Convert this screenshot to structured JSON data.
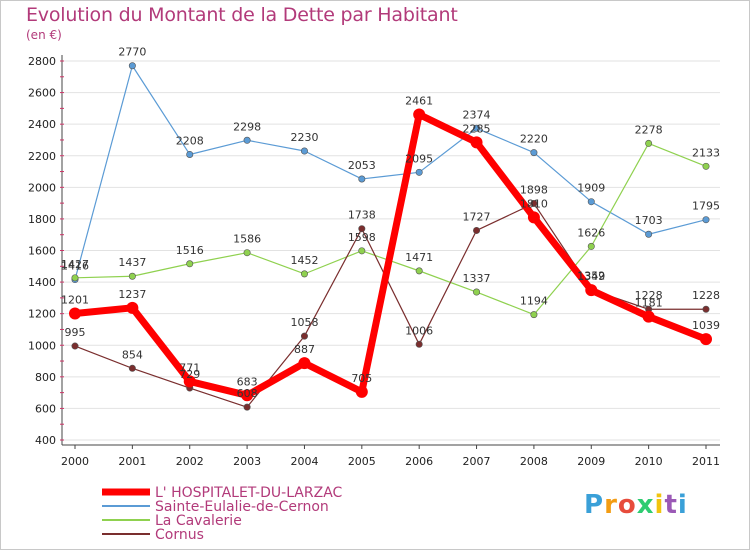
{
  "chart_data": {
    "type": "line",
    "title": "Evolution du Montant de la Dette par Habitant",
    "subtitle": "(en €)",
    "categories": [
      "2000",
      "2001",
      "2002",
      "2003",
      "2004",
      "2005",
      "2006",
      "2007",
      "2008",
      "2009",
      "2010",
      "2011"
    ],
    "ylim": [
      400,
      2800
    ],
    "yticks": [
      400,
      600,
      800,
      1000,
      1200,
      1400,
      1600,
      1800,
      2000,
      2200,
      2400,
      2600,
      2800
    ],
    "grid": true,
    "legend_position": "bottom-left",
    "series": [
      {
        "name": "L' HOSPITALET-DU-LARZAC",
        "color": "#ff0000",
        "values": [
          1201,
          1237,
          771,
          683,
          887,
          705,
          2461,
          2285,
          1810,
          1349,
          1181,
          1039
        ]
      },
      {
        "name": "Sainte-Eulalie-de-Cernon",
        "color": "#5b9bd5",
        "values": [
          1416,
          2770,
          2208,
          2298,
          2230,
          2053,
          2095,
          2374,
          2220,
          1909,
          1703,
          1795
        ]
      },
      {
        "name": "La Cavalerie",
        "color": "#8fd14f",
        "values": [
          1427,
          1437,
          1516,
          1586,
          1452,
          1598,
          1471,
          1337,
          1194,
          1626,
          2278,
          2133
        ]
      },
      {
        "name": "Cornus",
        "color": "#7a2e2e",
        "values": [
          995,
          854,
          729,
          608,
          1058,
          1738,
          1006,
          1727,
          1898,
          1352,
          1228,
          1228
        ]
      }
    ]
  },
  "logo": {
    "text": "Proxiti",
    "colors": [
      "#3aa0d8",
      "#f39c12",
      "#e74c3c",
      "#2ecc71",
      "#f1c40f",
      "#9b59b6",
      "#3aa0d8"
    ]
  }
}
